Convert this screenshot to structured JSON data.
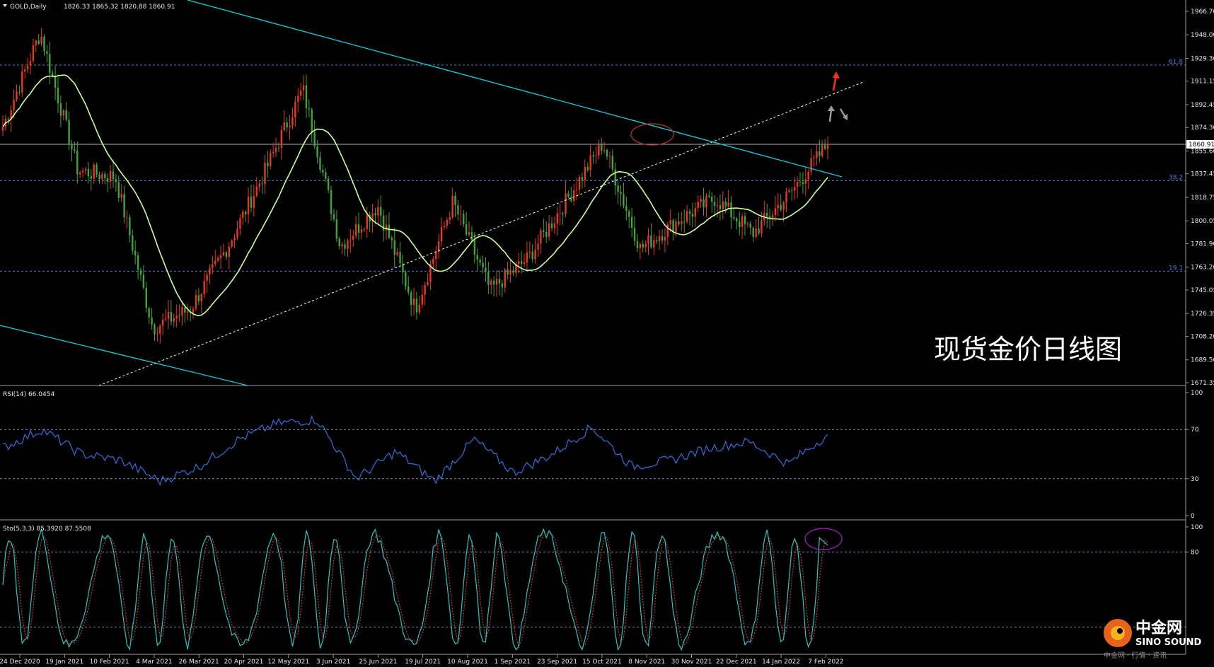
{
  "header": {
    "symbol": "GOLD,Daily",
    "ohlc": "1826.33 1865.32 1820.88 1860.91"
  },
  "overlay_title": "现货金价日线图",
  "price_axis": {
    "ticks": [
      "1966.70",
      "1948.00",
      "1929.30",
      "1911.15",
      "1892.45",
      "1874.30",
      "1855.60",
      "1837.45",
      "1818.75",
      "1800.05",
      "1781.90",
      "1763.20",
      "1745.05",
      "1726.35",
      "1708.20",
      "1689.50",
      "1671.35"
    ],
    "current_price": "1860.91"
  },
  "fib_levels": [
    {
      "label": "61.8",
      "price": 1924
    },
    {
      "label": "38.2",
      "price": 1832
    },
    {
      "label": "19.1",
      "price": 1760
    }
  ],
  "rsi": {
    "label": "RSI(14) 66.0454",
    "ticks": [
      "100",
      "70",
      "30",
      "0"
    ]
  },
  "stoch": {
    "label": "Sto(5,3,3) 85.3920 87.5508",
    "ticks": [
      "100",
      "80"
    ]
  },
  "date_labels": [
    "24 Dec 2020",
    "19 Jan 2021",
    "10 Feb 2021",
    "4 Mar 2021",
    "26 Mar 2021",
    "20 Apr 2021",
    "12 May 2021",
    "3 Jun 2021",
    "25 Jun 2021",
    "19 Jul 2021",
    "10 Aug 2021",
    "1 Sep 2021",
    "23 Sep 2021",
    "15 Oct 2021",
    "8 Nov 2021",
    "30 Nov 2021",
    "22 Dec 2021",
    "14 Jan 2022",
    "7 Feb 2022"
  ],
  "logo": {
    "cn": "中金网",
    "en": "SINO SOUND",
    "sub": "中金网 · 行情 · 资讯"
  },
  "colors": {
    "up": "#e8391c",
    "down": "#3fa535",
    "ma": "#ccff99",
    "trend": "#19c2d1",
    "rsi": "#2f6fe0",
    "sto_main": "#27c6c6",
    "sto_signal": "#e0453a",
    "fib": "#4f7fd8",
    "grid": "#8a8aa0"
  },
  "chart_data": {
    "type": "candlestick",
    "title": "现货金价日线图",
    "series_close_keypoints": {
      "dates": [
        "24 Dec 2020",
        "6 Jan 2021",
        "19 Jan 2021",
        "10 Feb 2021",
        "4 Mar 2021",
        "26 Mar 2021",
        "20 Apr 2021",
        "12 May 2021",
        "1 Jun 2021",
        "25 Jun 2021",
        "19 Jul 2021",
        "10 Aug 2021",
        "1 Sep 2021",
        "23 Sep 2021",
        "15 Oct 2021",
        "8 Nov 2021",
        "16 Nov 2021",
        "30 Nov 2021",
        "22 Dec 2021",
        "14 Jan 2022",
        "28 Jan 2022",
        "7 Feb 2022",
        "11 Feb 2022"
      ],
      "close": [
        1875,
        1950,
        1840,
        1835,
        1715,
        1730,
        1780,
        1840,
        1905,
        1780,
        1812,
        1730,
        1815,
        1745,
        1770,
        1815,
        1862,
        1778,
        1800,
        1818,
        1790,
        1822,
        1860.91
      ]
    },
    "ylim": [
      1671.35,
      1966.7
    ],
    "rsi_keypoints": [
      55,
      70,
      50,
      45,
      28,
      40,
      62,
      75,
      78,
      30,
      52,
      28,
      62,
      35,
      50,
      72,
      40,
      45,
      55,
      60,
      42,
      66.05
    ],
    "rsi_ylim": [
      0,
      100
    ],
    "stoch_ylim": [
      0,
      100
    ],
    "stoch_last": [
      85.392,
      87.5508
    ]
  }
}
